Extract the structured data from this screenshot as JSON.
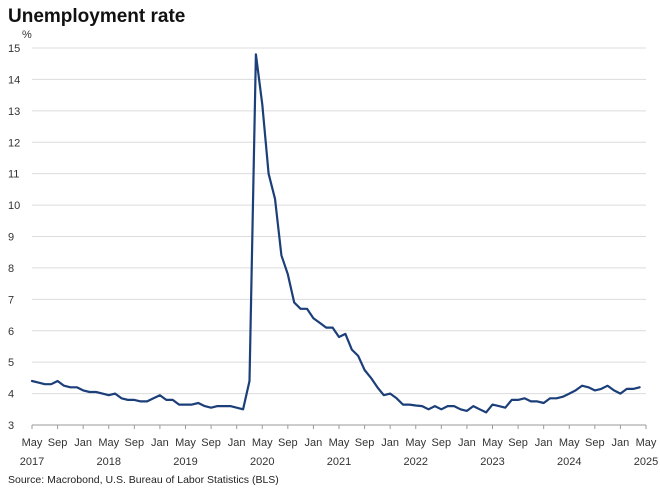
{
  "chart_data": {
    "type": "line",
    "title": "Unemployment rate",
    "ylabel": "%",
    "source": "Source: Macrobond, U.S. Bureau of Labor Statistics (BLS)",
    "ylim": [
      3,
      15
    ],
    "yticks": [
      3,
      4,
      5,
      6,
      7,
      8,
      9,
      10,
      11,
      12,
      13,
      14,
      15
    ],
    "xlim": [
      "2017-05",
      "2025-05"
    ],
    "x_month_ticks": [
      "May",
      "Sep",
      "Jan",
      "May",
      "Sep",
      "Jan",
      "May",
      "Sep",
      "Jan",
      "May",
      "Sep",
      "Jan",
      "May",
      "Sep",
      "Jan",
      "May",
      "Sep",
      "Jan",
      "May",
      "Sep",
      "Jan",
      "May",
      "Sep",
      "Jan",
      "May"
    ],
    "x_tick_dates": [
      "2017-05",
      "2017-09",
      "2018-01",
      "2018-05",
      "2018-09",
      "2019-01",
      "2019-05",
      "2019-09",
      "2020-01",
      "2020-05",
      "2020-09",
      "2021-01",
      "2021-05",
      "2021-09",
      "2022-01",
      "2022-05",
      "2022-09",
      "2023-01",
      "2023-05",
      "2023-09",
      "2024-01",
      "2024-05",
      "2024-09",
      "2025-01",
      "2025-05"
    ],
    "x_year_labels": [
      "2017",
      "2018",
      "2019",
      "2020",
      "2021",
      "2022",
      "2023",
      "2024",
      "2025"
    ],
    "x_year_dates": [
      "2017-05",
      "2018-05",
      "2019-05",
      "2020-05",
      "2021-05",
      "2022-05",
      "2023-05",
      "2024-05",
      "2025-05"
    ],
    "grid": true,
    "series": [
      {
        "color": "#1c3f7a",
        "x": [
          "2017-05",
          "2017-06",
          "2017-07",
          "2017-08",
          "2017-09",
          "2017-10",
          "2017-11",
          "2017-12",
          "2018-01",
          "2018-02",
          "2018-03",
          "2018-04",
          "2018-05",
          "2018-06",
          "2018-07",
          "2018-08",
          "2018-09",
          "2018-10",
          "2018-11",
          "2018-12",
          "2019-01",
          "2019-02",
          "2019-03",
          "2019-04",
          "2019-05",
          "2019-06",
          "2019-07",
          "2019-08",
          "2019-09",
          "2019-10",
          "2019-11",
          "2019-12",
          "2020-01",
          "2020-02",
          "2020-03",
          "2020-04",
          "2020-05",
          "2020-06",
          "2020-07",
          "2020-08",
          "2020-09",
          "2020-10",
          "2020-11",
          "2020-12",
          "2021-01",
          "2021-02",
          "2021-03",
          "2021-04",
          "2021-05",
          "2021-06",
          "2021-07",
          "2021-08",
          "2021-09",
          "2021-10",
          "2021-11",
          "2021-12",
          "2022-01",
          "2022-02",
          "2022-03",
          "2022-04",
          "2022-05",
          "2022-06",
          "2022-07",
          "2022-08",
          "2022-09",
          "2022-10",
          "2022-11",
          "2022-12",
          "2023-01",
          "2023-02",
          "2023-03",
          "2023-04",
          "2023-05",
          "2023-06",
          "2023-07",
          "2023-08",
          "2023-09",
          "2023-10",
          "2023-11",
          "2023-12",
          "2024-01",
          "2024-02",
          "2024-03",
          "2024-04",
          "2024-05",
          "2024-06",
          "2024-07",
          "2024-08",
          "2024-09",
          "2024-10",
          "2024-11",
          "2024-12",
          "2025-01",
          "2025-02",
          "2025-03",
          "2025-04"
        ],
        "y": [
          4.4,
          4.35,
          4.3,
          4.3,
          4.4,
          4.25,
          4.2,
          4.2,
          4.1,
          4.05,
          4.05,
          4.0,
          3.95,
          4.0,
          3.85,
          3.8,
          3.8,
          3.75,
          3.75,
          3.85,
          3.95,
          3.8,
          3.8,
          3.65,
          3.65,
          3.65,
          3.7,
          3.6,
          3.55,
          3.6,
          3.6,
          3.6,
          3.55,
          3.5,
          4.4,
          14.8,
          13.2,
          11.0,
          10.2,
          8.4,
          7.8,
          6.9,
          6.7,
          6.7,
          6.4,
          6.25,
          6.1,
          6.1,
          5.8,
          5.9,
          5.4,
          5.2,
          4.75,
          4.5,
          4.2,
          3.95,
          4.0,
          3.85,
          3.65,
          3.65,
          3.62,
          3.6,
          3.5,
          3.6,
          3.5,
          3.6,
          3.6,
          3.5,
          3.45,
          3.6,
          3.5,
          3.4,
          3.65,
          3.6,
          3.55,
          3.8,
          3.8,
          3.85,
          3.75,
          3.75,
          3.7,
          3.85,
          3.85,
          3.9,
          4.0,
          4.1,
          4.25,
          4.2,
          4.1,
          4.15,
          4.25,
          4.1,
          4.0,
          4.15,
          4.15,
          4.2
        ]
      }
    ]
  }
}
